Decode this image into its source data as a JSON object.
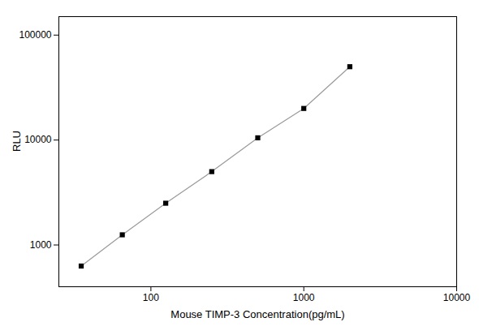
{
  "chart_data": {
    "type": "line",
    "x": [
      35,
      65,
      125,
      250,
      500,
      1000,
      2000
    ],
    "values": [
      630,
      1250,
      2500,
      5000,
      10500,
      20000,
      50000
    ],
    "xlabel": "Mouse TIMP-3 Concentration(pg/mL)",
    "ylabel": "RLU",
    "xlim": [
      25,
      10000
    ],
    "ylim": [
      400,
      150000
    ],
    "xticks": [
      100,
      1000,
      10000
    ],
    "yticks": [
      1000,
      10000,
      100000
    ],
    "log": true,
    "marker": "square",
    "grid": false
  }
}
